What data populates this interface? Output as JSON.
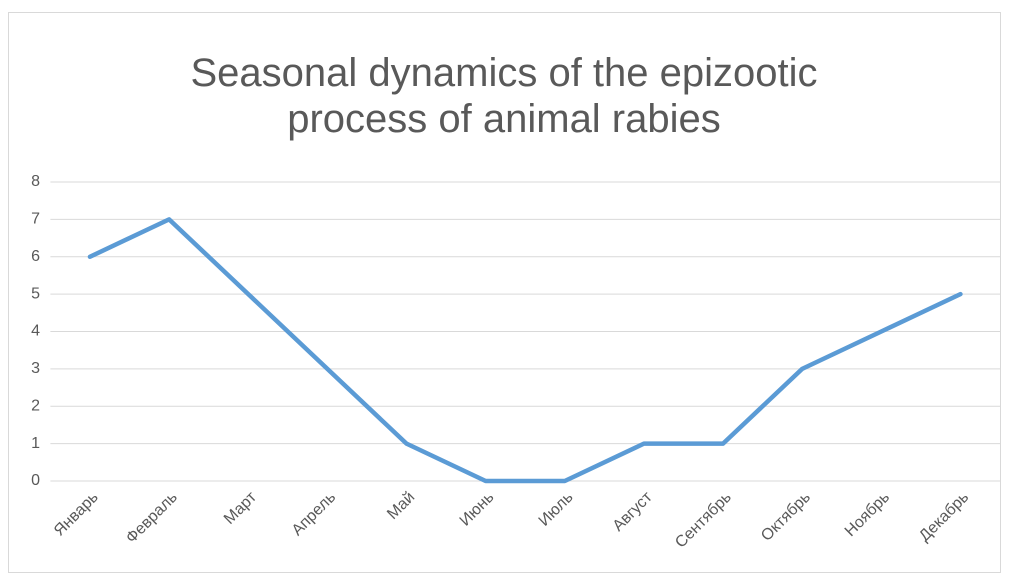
{
  "chart_data": {
    "type": "line",
    "title": "Seasonal dynamics of the epizootic process of animal rabies",
    "categories": [
      "Январь",
      "Февраль",
      "Март",
      "Апрель",
      "Май",
      "Июнь",
      "Июль",
      "Август",
      "Сентябрь",
      "Октябрь",
      "Ноябрь",
      "Декабрь"
    ],
    "values": [
      6,
      7,
      5,
      3,
      1,
      0,
      0,
      1,
      1,
      3,
      4,
      5
    ],
    "color": "#5b9bd5",
    "ylim": [
      0,
      8
    ],
    "yticks": [
      0,
      1,
      2,
      3,
      4,
      5,
      6,
      7,
      8
    ],
    "grid": true
  }
}
